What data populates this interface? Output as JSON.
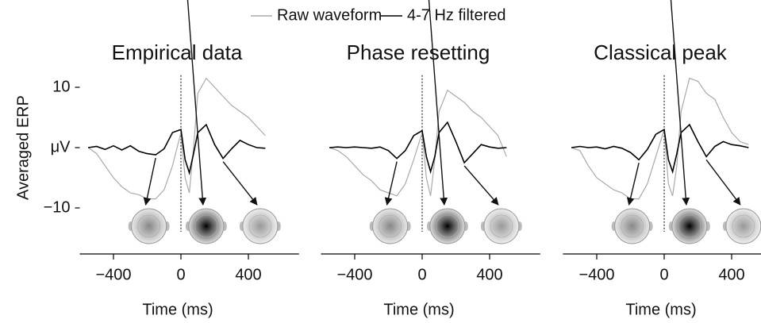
{
  "chart_data": [
    {
      "type": "line",
      "title": "Empirical data",
      "y_label": "Averaged ERP",
      "x_label": "Time (ms)",
      "x": [
        -550,
        -500,
        -450,
        -400,
        -350,
        -300,
        -250,
        -200,
        -150,
        -100,
        -50,
        0,
        25,
        50,
        75,
        100,
        150,
        200,
        250,
        300,
        350,
        400,
        450,
        500
      ],
      "series": [
        {
          "name": "Raw waveform",
          "color": "#aaaaaa",
          "values": [
            0,
            -1,
            -3,
            -5,
            -6.5,
            -7.5,
            -7.8,
            -8.5,
            -8.5,
            -7,
            -3,
            2.5,
            -5,
            -7.5,
            0,
            9,
            11.5,
            10,
            8.5,
            7,
            6,
            5,
            3.5,
            2
          ]
        },
        {
          "name": "4-7 Hz filtered",
          "color": "#000000",
          "values": [
            0,
            0.2,
            -0.3,
            0.3,
            -0.4,
            0.3,
            -0.6,
            -1,
            -1.2,
            -0.2,
            2.5,
            3,
            -2,
            -4.2,
            -1,
            2.5,
            3.8,
            0.5,
            -1.8,
            -0.2,
            1.2,
            0.5,
            0,
            -0.1
          ]
        }
      ],
      "xlim": [
        -600,
        700
      ],
      "xticks": [
        {
          "value": -400,
          "label": "−400"
        },
        0,
        400
      ],
      "ylim": [
        -13,
        12
      ],
      "yticks": [
        10,
        {
          "value": 0,
          "label": "μV"
        },
        {
          "value": -10,
          "label": "−10"
        }
      ]
    },
    {
      "type": "line",
      "title": "Phase resetting",
      "x_label": "Time (ms)",
      "x": [
        -550,
        -500,
        -450,
        -400,
        -350,
        -300,
        -250,
        -200,
        -150,
        -100,
        -50,
        0,
        25,
        50,
        75,
        100,
        150,
        200,
        250,
        300,
        350,
        400,
        450,
        500
      ],
      "series": [
        {
          "color": "#aaaaaa",
          "values": [
            0,
            -0.5,
            -1.5,
            -3,
            -4.5,
            -5.5,
            -7,
            -7.5,
            -8,
            -6,
            -2,
            2.5,
            -5,
            -8,
            -2,
            6,
            9.5,
            8.5,
            7.5,
            6,
            5,
            3.5,
            2,
            -1.5
          ]
        },
        {
          "color": "#000000",
          "values": [
            0,
            0.1,
            0,
            0.1,
            0,
            -0.1,
            0.1,
            -0.5,
            -1.8,
            -0.5,
            2,
            2.8,
            -1.5,
            -4,
            -1.5,
            2.5,
            4.2,
            1,
            -2.5,
            -1,
            0.5,
            0.1,
            -0.1,
            0
          ]
        }
      ],
      "xlim": [
        -600,
        700
      ],
      "xticks": [
        {
          "value": -400,
          "label": "−400"
        },
        0,
        400
      ],
      "ylim": [
        -13,
        12
      ]
    },
    {
      "type": "line",
      "title": "Classical peak",
      "x_label": "Time (ms)",
      "x": [
        -550,
        -500,
        -450,
        -400,
        -350,
        -300,
        -250,
        -200,
        -150,
        -100,
        -50,
        0,
        25,
        50,
        75,
        100,
        150,
        200,
        250,
        300,
        350,
        400,
        450,
        500
      ],
      "series": [
        {
          "color": "#aaaaaa",
          "values": [
            0,
            -0.5,
            -3,
            -5,
            -6,
            -7,
            -7.5,
            -8.5,
            -8.5,
            -6,
            -1.5,
            3,
            -6,
            -8,
            -3,
            6,
            11.5,
            11,
            9,
            8,
            5,
            2.5,
            1,
            0.5
          ]
        },
        {
          "color": "#000000",
          "values": [
            0,
            0.2,
            0,
            0.1,
            -0.2,
            0.2,
            -0.1,
            -0.8,
            -2,
            -0.3,
            2.2,
            3,
            -2,
            -4,
            -1,
            2.5,
            3.8,
            1,
            -1.5,
            0.2,
            1,
            0.5,
            0.3,
            0
          ]
        }
      ],
      "xlim": [
        -600,
        700
      ],
      "xticks": [
        {
          "value": -400,
          "label": "−400"
        },
        0,
        400
      ],
      "ylim": [
        -13,
        12
      ]
    }
  ]
}
